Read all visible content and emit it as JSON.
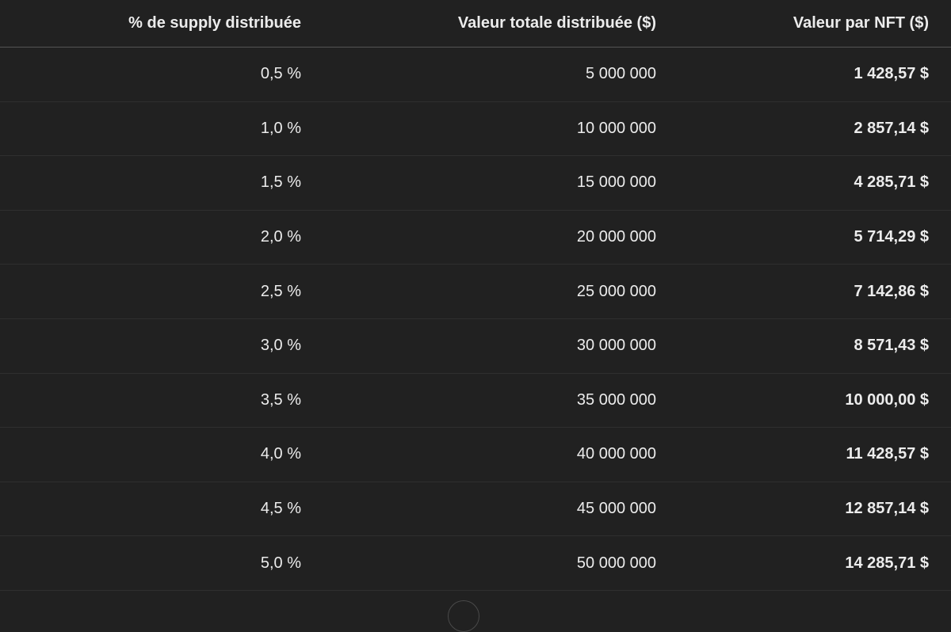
{
  "table": {
    "columns": [
      "% de supply distribuée",
      "Valeur totale distribuée ($)",
      "Valeur par NFT ($)"
    ],
    "rows": [
      [
        "0,5 %",
        "5 000 000",
        "1 428,57 $"
      ],
      [
        "1,0 %",
        "10 000 000",
        "2 857,14 $"
      ],
      [
        "1,5 %",
        "15 000 000",
        "4 285,71 $"
      ],
      [
        "2,0 %",
        "20 000 000",
        "5 714,29 $"
      ],
      [
        "2,5 %",
        "25 000 000",
        "7 142,86 $"
      ],
      [
        "3,0 %",
        "30 000 000",
        "8 571,43 $"
      ],
      [
        "3,5 %",
        "35 000 000",
        "10 000,00 $"
      ],
      [
        "4,0 %",
        "40 000 000",
        "11 428,57 $"
      ],
      [
        "4,5 %",
        "45 000 000",
        "12 857,14 $"
      ],
      [
        "5,0 %",
        "50 000 000",
        "14 285,71 $"
      ]
    ]
  }
}
